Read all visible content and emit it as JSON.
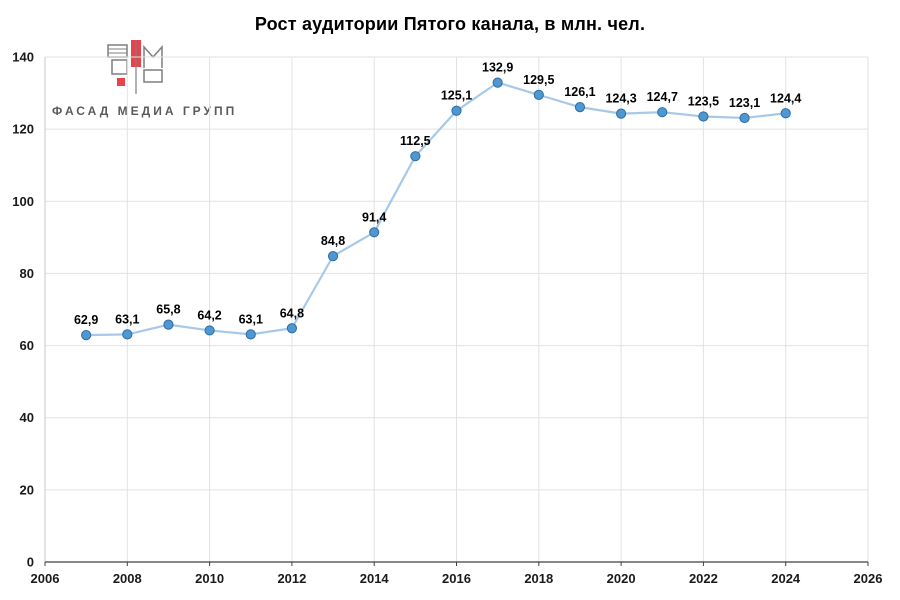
{
  "title": "Рост аудитории Пятого канала, в млн. чел.",
  "logo": {
    "text": "ФАСАД МЕДИА ГРУПП",
    "accent_color": "#e8424d",
    "outline_color": "#7f7f7f"
  },
  "chart_data": {
    "type": "line",
    "title": "Рост аудитории Пятого канала, в млн. чел.",
    "xlabel": "",
    "ylabel": "",
    "x": [
      2007,
      2008,
      2009,
      2010,
      2011,
      2012,
      2013,
      2014,
      2015,
      2016,
      2017,
      2018,
      2019,
      2020,
      2021,
      2022,
      2023,
      2024
    ],
    "values": [
      62.9,
      63.1,
      65.8,
      64.2,
      63.1,
      64.8,
      84.8,
      91.4,
      112.5,
      125.1,
      132.9,
      129.5,
      126.1,
      124.3,
      124.7,
      123.5,
      123.1,
      124.4
    ],
    "labels": [
      "62,9",
      "63,1",
      "65,8",
      "64,2",
      "63,1",
      "64,8",
      "84,8",
      "91,4",
      "112,5",
      "125,1",
      "132,9",
      "129,5",
      "126,1",
      "124,3",
      "124,7",
      "123,5",
      "123,1",
      "124,4"
    ],
    "xticks": [
      2006,
      2008,
      2010,
      2012,
      2014,
      2016,
      2018,
      2020,
      2022,
      2024,
      2026
    ],
    "yticks": [
      0,
      20,
      40,
      60,
      80,
      100,
      120,
      140
    ],
    "xlim": [
      2006,
      2026
    ],
    "ylim": [
      0,
      140
    ],
    "grid": true,
    "legend": "none",
    "line_color": "#a6c9e8",
    "marker_fill": "#4e97d1",
    "marker_stroke": "#2e6da4",
    "grid_color": "#e2e2e2",
    "axis_color": "#404040"
  }
}
